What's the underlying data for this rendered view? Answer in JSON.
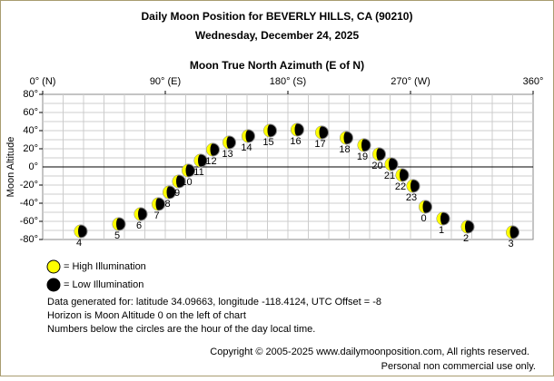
{
  "chart_data": {
    "type": "scatter",
    "title": "Daily Moon Position for BEVERLY HILLS, CA (90210)",
    "subtitle": "Wednesday, December 24, 2025",
    "x_label": "Moon True North Azimuth (E of N)",
    "y_label": "Moon Altitude",
    "xlim": [
      0,
      360
    ],
    "ylim": [
      -80,
      80
    ],
    "xticks": [
      {
        "value": 0,
        "label": "0° (N)"
      },
      {
        "value": 90,
        "label": "90° (E)"
      },
      {
        "value": 180,
        "label": "180° (S)"
      },
      {
        "value": 270,
        "label": "270° (W)"
      },
      {
        "value": 360,
        "label": "360°"
      }
    ],
    "yticks": [
      {
        "value": 80,
        "label": "80°"
      },
      {
        "value": 60,
        "label": "60°"
      },
      {
        "value": 40,
        "label": "40°"
      },
      {
        "value": 20,
        "label": "20°"
      },
      {
        "value": 0,
        "label": "0°"
      },
      {
        "value": -20,
        "label": "-20°"
      },
      {
        "value": -40,
        "label": "-40°"
      },
      {
        "value": -60,
        "label": "-60°"
      },
      {
        "value": -80,
        "label": "-80°"
      }
    ],
    "xgrid": [
      15,
      30,
      45,
      60,
      75,
      90,
      105,
      120,
      135,
      150,
      165,
      180,
      195,
      210,
      225,
      240,
      255,
      270,
      285,
      300,
      315,
      330,
      345
    ],
    "ygrid": [
      70,
      60,
      50,
      40,
      30,
      20,
      10,
      -10,
      -20,
      -30,
      -40,
      -50,
      -60,
      -70
    ],
    "grid": true,
    "x": [
      28,
      56,
      72,
      85,
      93,
      100,
      107,
      116,
      125,
      137,
      151,
      167,
      187,
      205,
      223,
      236,
      247,
      256,
      264,
      272,
      281,
      294,
      312,
      345
    ],
    "y": [
      -71,
      -63,
      -52,
      -41,
      -28,
      -16,
      -4,
      7,
      19,
      27,
      34,
      40,
      41,
      38,
      32,
      24,
      14,
      3,
      -9,
      -21,
      -44,
      -57,
      -66,
      -72
    ],
    "point_labels": [
      "4",
      "5",
      "6",
      "7",
      "8",
      "9",
      "10",
      "11",
      "12",
      "13",
      "14",
      "15",
      "16",
      "17",
      "18",
      "19",
      "20",
      "21",
      "22",
      "23",
      "0",
      "1",
      "2",
      "3"
    ],
    "color": "#ffff00",
    "legend": [
      {
        "name": "= High Illumination",
        "color": "#ffff00"
      },
      {
        "name": "= Low Illumination",
        "color": "#000000"
      }
    ],
    "notes": [
      "Data generated for: latitude 34.09663, longitude -118.4124, UTC Offset = -8",
      "Horizon is Moon Altitude 0 on the left of chart",
      "Numbers below the circles are the hour of the day local time."
    ],
    "copyright": [
      "Copyright © 2005-2025 www.dailymoonposition.com, All rights reserved.",
      "Personal non commercial use only."
    ]
  }
}
